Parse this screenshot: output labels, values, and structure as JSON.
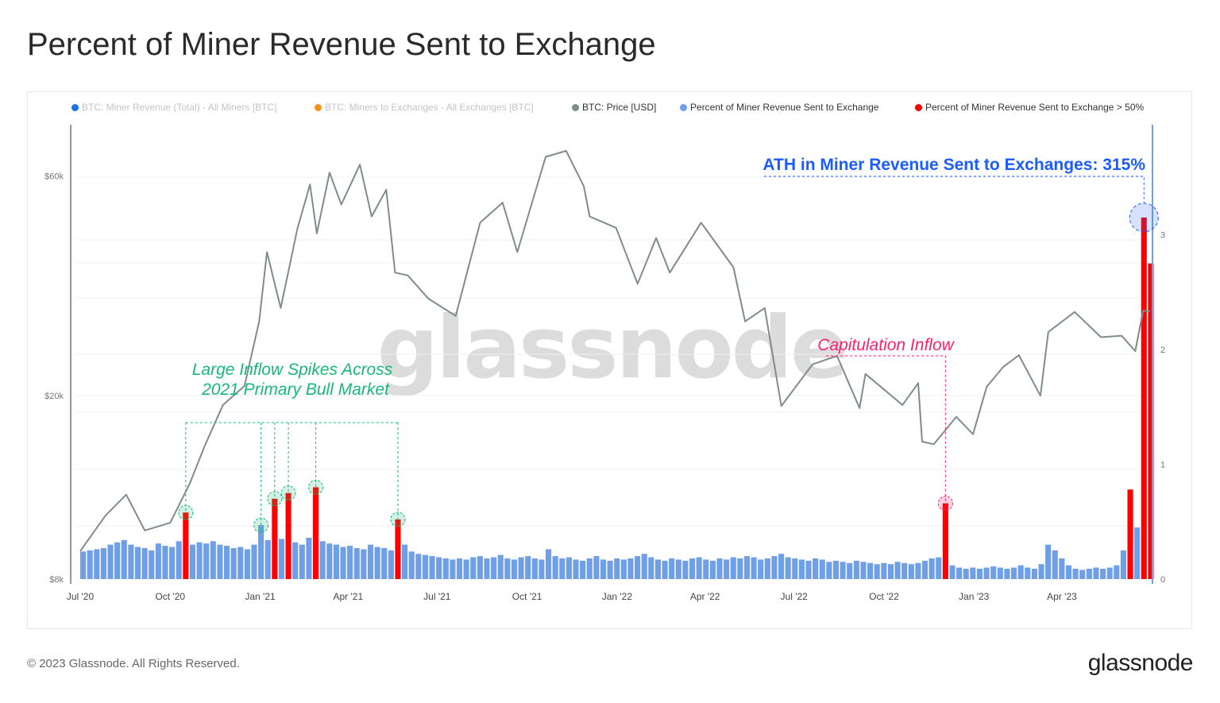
{
  "title": "Percent of Miner Revenue Sent to Exchange",
  "footer": "© 2023 Glassnode. All Rights Reserved.",
  "logo": "glassnode",
  "watermark": "glassnode",
  "legend": [
    {
      "label": "BTC: Miner Revenue (Total) - All Miners [BTC]",
      "color": "#1f6fe5",
      "active": false
    },
    {
      "label": "BTC: Miners to Exchanges - All Exchanges [BTC]",
      "color": "#f7931a",
      "active": false
    },
    {
      "label": "BTC: Price [USD]",
      "color": "#7f8c8d",
      "active": true
    },
    {
      "label": "Percent of Miner Revenue Sent to Exchange",
      "color": "#6f9fe6",
      "active": true
    },
    {
      "label": "Percent of Miner Revenue Sent to Exchange > 50%",
      "color": "#ff0000",
      "active": true
    }
  ],
  "annotations": {
    "bull": {
      "line1": "Large Inflow Spikes Across",
      "line2": "2021 Primary Bull Market",
      "color": "#17b978"
    },
    "capitulation": {
      "text": "Capitulation Inflow",
      "color": "#ff1f6b"
    },
    "ath": {
      "text": "ATH in Miner Revenue Sent to Exchanges: 315%",
      "color": "#1b5cff"
    }
  },
  "chart_data": {
    "type": "bar+line",
    "title": "Percent of Miner Revenue Sent to Exchange",
    "x_ticks": [
      {
        "date": "2020-07-01",
        "label": "Jul '20"
      },
      {
        "date": "2020-10-01",
        "label": "Oct '20"
      },
      {
        "date": "2021-01-01",
        "label": "Jan '21"
      },
      {
        "date": "2021-04-01",
        "label": "Apr '21"
      },
      {
        "date": "2021-07-01",
        "label": "Jul '21"
      },
      {
        "date": "2021-10-01",
        "label": "Oct '21"
      },
      {
        "date": "2022-01-01",
        "label": "Jan '22"
      },
      {
        "date": "2022-04-01",
        "label": "Apr '22"
      },
      {
        "date": "2022-07-01",
        "label": "Jul '22"
      },
      {
        "date": "2022-10-01",
        "label": "Oct '22"
      },
      {
        "date": "2023-01-01",
        "label": "Jan '23"
      },
      {
        "date": "2023-04-01",
        "label": "Apr '23"
      }
    ],
    "x_range": [
      "2020-07-01",
      "2023-06-30"
    ],
    "left_axis": {
      "scale": "log",
      "ticks": [
        {
          "value": 8000,
          "label": "$8k"
        },
        {
          "value": 20000,
          "label": "$20k"
        },
        {
          "value": 60000,
          "label": "$60k"
        }
      ]
    },
    "right_axis": {
      "scale": "linear",
      "range": [
        0,
        3.4
      ],
      "ticks": [
        {
          "value": 0,
          "label": "0"
        },
        {
          "value": 1,
          "label": "1"
        },
        {
          "value": 2,
          "label": "2"
        },
        {
          "value": 3,
          "label": "3"
        }
      ]
    },
    "grid": true,
    "legend_position": "top",
    "threshold": 0.5,
    "price": {
      "name": "BTC: Price [USD]",
      "x": [
        "2020-07-01",
        "2020-07-27",
        "2020-08-17",
        "2020-09-05",
        "2020-10-01",
        "2020-10-21",
        "2020-11-05",
        "2020-11-24",
        "2020-12-16",
        "2020-12-31",
        "2021-01-08",
        "2021-01-22",
        "2021-02-08",
        "2021-02-21",
        "2021-02-28",
        "2021-03-13",
        "2021-03-25",
        "2021-04-13",
        "2021-04-25",
        "2021-05-10",
        "2021-05-19",
        "2021-06-01",
        "2021-06-22",
        "2021-07-20",
        "2021-08-14",
        "2021-09-06",
        "2021-09-21",
        "2021-10-20",
        "2021-11-10",
        "2021-11-28",
        "2021-12-04",
        "2021-12-31",
        "2022-01-22",
        "2022-02-10",
        "2022-02-24",
        "2022-03-28",
        "2022-04-30",
        "2022-05-12",
        "2022-06-01",
        "2022-06-18",
        "2022-07-20",
        "2022-08-14",
        "2022-09-06",
        "2022-09-12",
        "2022-10-20",
        "2022-11-05",
        "2022-11-09",
        "2022-11-21",
        "2022-12-14",
        "2022-12-31",
        "2023-01-14",
        "2023-01-31",
        "2023-02-16",
        "2023-03-10",
        "2023-03-18",
        "2023-04-14",
        "2023-05-11",
        "2023-06-01",
        "2023-06-15",
        "2023-06-23",
        "2023-06-30"
      ],
      "y": [
        9200,
        11000,
        12200,
        10200,
        10600,
        12900,
        15500,
        19100,
        21000,
        29000,
        41000,
        31000,
        46000,
        57500,
        45000,
        61000,
        52000,
        63500,
        49000,
        56000,
        37000,
        36500,
        32500,
        29800,
        47500,
        52500,
        41000,
        66000,
        68000,
        57000,
        49000,
        46300,
        35000,
        44000,
        37000,
        47500,
        38000,
        29000,
        31000,
        19000,
        23400,
        24400,
        18800,
        22300,
        19100,
        21300,
        15900,
        15700,
        18000,
        16500,
        20900,
        23100,
        24500,
        20000,
        27500,
        30400,
        26800,
        27000,
        25000,
        30600,
        30500
      ]
    },
    "percent": {
      "name": "Percent of Miner Revenue Sent to Exchange",
      "x": [
        "2020-07-01",
        "2020-07-08",
        "2020-07-15",
        "2020-07-22",
        "2020-07-29",
        "2020-08-05",
        "2020-08-12",
        "2020-08-19",
        "2020-08-26",
        "2020-09-02",
        "2020-09-09",
        "2020-09-16",
        "2020-09-23",
        "2020-09-30",
        "2020-10-07",
        "2020-10-14",
        "2020-10-21",
        "2020-10-28",
        "2020-11-04",
        "2020-11-11",
        "2020-11-18",
        "2020-11-25",
        "2020-12-02",
        "2020-12-09",
        "2020-12-16",
        "2020-12-23",
        "2020-12-30",
        "2021-01-06",
        "2021-01-13",
        "2021-01-20",
        "2021-01-27",
        "2021-02-03",
        "2021-02-10",
        "2021-02-17",
        "2021-02-24",
        "2021-03-03",
        "2021-03-10",
        "2021-03-17",
        "2021-03-24",
        "2021-03-31",
        "2021-04-07",
        "2021-04-14",
        "2021-04-21",
        "2021-04-28",
        "2021-05-05",
        "2021-05-12",
        "2021-05-19",
        "2021-05-26",
        "2021-06-02",
        "2021-06-09",
        "2021-06-16",
        "2021-06-23",
        "2021-06-30",
        "2021-07-07",
        "2021-07-14",
        "2021-07-21",
        "2021-07-28",
        "2021-08-04",
        "2021-08-11",
        "2021-08-18",
        "2021-08-25",
        "2021-09-01",
        "2021-09-08",
        "2021-09-15",
        "2021-09-22",
        "2021-09-29",
        "2021-10-06",
        "2021-10-13",
        "2021-10-20",
        "2021-10-27",
        "2021-11-03",
        "2021-11-10",
        "2021-11-17",
        "2021-11-24",
        "2021-12-01",
        "2021-12-08",
        "2021-12-15",
        "2021-12-22",
        "2021-12-29",
        "2022-01-05",
        "2022-01-12",
        "2022-01-19",
        "2022-01-26",
        "2022-02-02",
        "2022-02-09",
        "2022-02-16",
        "2022-02-23",
        "2022-03-02",
        "2022-03-09",
        "2022-03-16",
        "2022-03-23",
        "2022-03-30",
        "2022-04-06",
        "2022-04-13",
        "2022-04-20",
        "2022-04-27",
        "2022-05-04",
        "2022-05-11",
        "2022-05-18",
        "2022-05-25",
        "2022-06-01",
        "2022-06-08",
        "2022-06-15",
        "2022-06-22",
        "2022-06-29",
        "2022-07-06",
        "2022-07-13",
        "2022-07-20",
        "2022-07-27",
        "2022-08-03",
        "2022-08-10",
        "2022-08-17",
        "2022-08-24",
        "2022-08-31",
        "2022-09-07",
        "2022-09-14",
        "2022-09-21",
        "2022-09-28",
        "2022-10-05",
        "2022-10-12",
        "2022-10-19",
        "2022-10-26",
        "2022-11-02",
        "2022-11-09",
        "2022-11-16",
        "2022-11-23",
        "2022-11-30",
        "2022-12-07",
        "2022-12-14",
        "2022-12-21",
        "2022-12-28",
        "2023-01-04",
        "2023-01-11",
        "2023-01-18",
        "2023-01-25",
        "2023-02-01",
        "2023-02-08",
        "2023-02-15",
        "2023-02-22",
        "2023-03-01",
        "2023-03-08",
        "2023-03-15",
        "2023-03-22",
        "2023-03-29",
        "2023-04-05",
        "2023-04-12",
        "2023-04-19",
        "2023-04-26",
        "2023-05-03",
        "2023-05-10",
        "2023-05-17",
        "2023-05-24",
        "2023-05-31",
        "2023-06-07",
        "2023-06-14",
        "2023-06-21",
        "2023-06-28"
      ],
      "y": [
        0.24,
        0.25,
        0.26,
        0.27,
        0.3,
        0.32,
        0.34,
        0.3,
        0.28,
        0.27,
        0.25,
        0.31,
        0.29,
        0.28,
        0.33,
        0.58,
        0.3,
        0.32,
        0.31,
        0.33,
        0.3,
        0.29,
        0.27,
        0.28,
        0.26,
        0.3,
        0.47,
        0.34,
        0.7,
        0.35,
        0.75,
        0.32,
        0.3,
        0.36,
        0.8,
        0.33,
        0.31,
        0.3,
        0.28,
        0.29,
        0.27,
        0.26,
        0.3,
        0.28,
        0.27,
        0.25,
        0.52,
        0.3,
        0.24,
        0.22,
        0.21,
        0.2,
        0.19,
        0.18,
        0.17,
        0.18,
        0.17,
        0.19,
        0.2,
        0.18,
        0.19,
        0.21,
        0.18,
        0.17,
        0.19,
        0.2,
        0.18,
        0.17,
        0.26,
        0.2,
        0.18,
        0.19,
        0.17,
        0.16,
        0.18,
        0.2,
        0.17,
        0.16,
        0.18,
        0.17,
        0.18,
        0.2,
        0.22,
        0.19,
        0.17,
        0.16,
        0.18,
        0.17,
        0.16,
        0.18,
        0.19,
        0.17,
        0.16,
        0.18,
        0.17,
        0.19,
        0.18,
        0.2,
        0.19,
        0.17,
        0.18,
        0.2,
        0.22,
        0.19,
        0.18,
        0.17,
        0.16,
        0.18,
        0.17,
        0.15,
        0.16,
        0.15,
        0.14,
        0.16,
        0.15,
        0.14,
        0.13,
        0.14,
        0.13,
        0.15,
        0.14,
        0.13,
        0.14,
        0.16,
        0.18,
        0.19,
        0.66,
        0.12,
        0.1,
        0.09,
        0.1,
        0.09,
        0.1,
        0.11,
        0.1,
        0.09,
        0.1,
        0.12,
        0.1,
        0.09,
        0.13,
        0.3,
        0.25,
        0.18,
        0.12,
        0.09,
        0.08,
        0.09,
        0.1,
        0.09,
        0.1,
        0.12,
        0.25,
        0.78,
        0.45,
        3.15,
        2.75
      ]
    },
    "highlights": {
      "bull": [
        "2020-10-14",
        "2020-12-30",
        "2021-01-13",
        "2021-01-27",
        "2021-02-24",
        "2021-05-19"
      ],
      "capitulation": [
        "2022-11-30"
      ],
      "ath": [
        "2023-06-21"
      ]
    }
  }
}
